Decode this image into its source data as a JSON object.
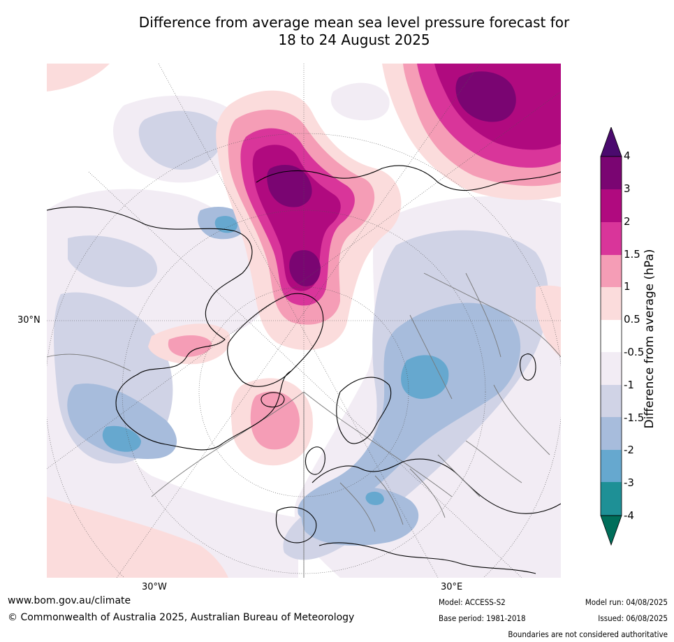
{
  "title": {
    "line1": "Difference from average mean sea level pressure forecast for",
    "line2": "18 to 24 August 2025"
  },
  "map": {
    "lat_labels": [
      "30°N"
    ],
    "lon_labels": [
      "30°W",
      "30°E"
    ]
  },
  "colorbar": {
    "title": "Difference from average (hPa)",
    "ticks": [
      "4",
      "3",
      "2",
      "1.5",
      "1",
      "0.5",
      "-0.5",
      "-1",
      "-1.5",
      "-2",
      "-3",
      "-4"
    ],
    "colors": {
      "gt4": "#4b0a6e",
      "3_4": "#7a0572",
      "2_3": "#b00a7f",
      "1.5_2": "#d9359a",
      "1_1.5": "#f59db6",
      "0.5_1": "#fbdcdc",
      "neutral": "#ffffff",
      "m1_m0.5": "#f2ecf4",
      "m1.5_m1": "#d0d3e6",
      "m2_m1.5": "#a7bcdc",
      "m3_m2": "#66a8cf",
      "m4_m3": "#1e9096",
      "lt_m4": "#006e5a"
    }
  },
  "footer": {
    "website": "www.bom.gov.au/climate",
    "copyright": "© Commonwealth of Australia 2025, Australian Bureau of Meteorology",
    "model": "Model: ACCESS-S2",
    "base_period": "Base period: 1981-2018",
    "model_run": "Model run: 04/08/2025",
    "issued": "Issued: 06/08/2025",
    "disclaimer": "Boundaries are not considered authoritative"
  }
}
